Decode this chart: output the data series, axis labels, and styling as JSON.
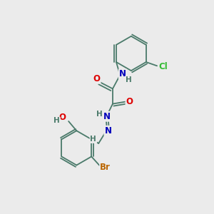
{
  "background_color": "#ebebeb",
  "bond_color": "#4a7a6a",
  "atom_colors": {
    "O": "#dd0000",
    "N": "#0000bb",
    "Cl": "#33bb33",
    "Br": "#bb6600",
    "H": "#4a7a6a",
    "C": "#4a7a6a"
  },
  "figsize": [
    3.0,
    3.0
  ],
  "dpi": 100
}
